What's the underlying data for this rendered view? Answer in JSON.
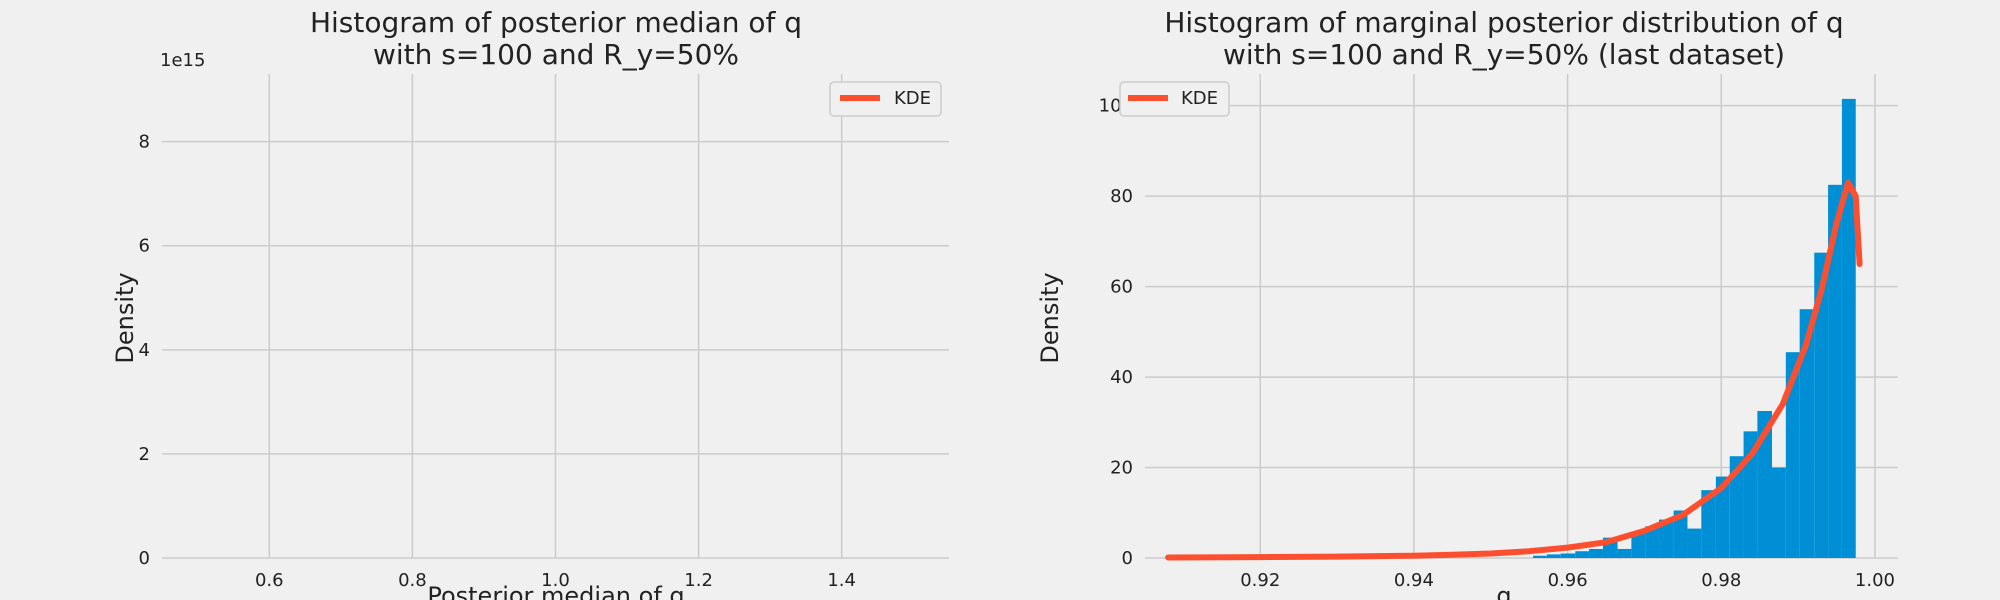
{
  "figure": {
    "background": "#f0f0f0",
    "grid_color": "#cbcbcb",
    "bar_color": "#008fd5",
    "kde_color": "#fc4f30"
  },
  "chart_data": [
    {
      "type": "bar",
      "title": [
        "Histogram of posterior median of q",
        "with s=100 and R_y=50%"
      ],
      "xlabel": "Posterior median of q",
      "ylabel": "Density",
      "y_offset_label": "1e15",
      "xlim": [
        0.45,
        1.55
      ],
      "ylim": [
        0,
        9.3
      ],
      "x_ticks": [
        0.6,
        0.8,
        1.0,
        1.2,
        1.4
      ],
      "x_tick_labels": [
        "0.6",
        "0.8",
        "1.0",
        "1.2",
        "1.4"
      ],
      "y_ticks": [
        0,
        2,
        4,
        6,
        8
      ],
      "y_tick_labels": [
        "0",
        "2",
        "4",
        "6",
        "8"
      ],
      "grid": true,
      "legend": {
        "position": "top-right",
        "entries": [
          "KDE"
        ]
      },
      "bins": [],
      "kde": {
        "x": [],
        "y": []
      }
    },
    {
      "type": "bar",
      "title": [
        "Histogram of marginal posterior distribution of q",
        "with s=100 and R_y=50% (last dataset)"
      ],
      "xlabel": "q",
      "ylabel": "Density",
      "xlim": [
        0.905,
        1.003
      ],
      "ylim": [
        0,
        107
      ],
      "x_ticks": [
        0.92,
        0.94,
        0.96,
        0.98,
        1.0
      ],
      "x_tick_labels": [
        "0.92",
        "0.94",
        "0.96",
        "0.98",
        "1.00"
      ],
      "y_ticks": [
        0,
        20,
        40,
        60,
        80,
        100
      ],
      "y_tick_labels": [
        "0",
        "20",
        "40",
        "60",
        "80",
        "100"
      ],
      "grid": true,
      "legend": {
        "position": "top-left",
        "entries": [
          "KDE"
        ]
      },
      "bins": [
        {
          "x0": 0.9555,
          "x1": 0.9573,
          "y": 0.5
        },
        {
          "x0": 0.9573,
          "x1": 0.9591,
          "y": 0.8
        },
        {
          "x0": 0.9591,
          "x1": 0.961,
          "y": 1.0
        },
        {
          "x0": 0.961,
          "x1": 0.9628,
          "y": 1.5
        },
        {
          "x0": 0.9628,
          "x1": 0.9646,
          "y": 2.0
        },
        {
          "x0": 0.9646,
          "x1": 0.9665,
          "y": 4.5
        },
        {
          "x0": 0.9665,
          "x1": 0.9683,
          "y": 2.0
        },
        {
          "x0": 0.9683,
          "x1": 0.9701,
          "y": 5.5
        },
        {
          "x0": 0.9701,
          "x1": 0.9719,
          "y": 7.0
        },
        {
          "x0": 0.9719,
          "x1": 0.9738,
          "y": 8.5
        },
        {
          "x0": 0.9738,
          "x1": 0.9756,
          "y": 10.5
        },
        {
          "x0": 0.9756,
          "x1": 0.9774,
          "y": 6.5
        },
        {
          "x0": 0.9774,
          "x1": 0.9793,
          "y": 15.0
        },
        {
          "x0": 0.9793,
          "x1": 0.9811,
          "y": 18.0
        },
        {
          "x0": 0.9811,
          "x1": 0.9829,
          "y": 22.5
        },
        {
          "x0": 0.9829,
          "x1": 0.9847,
          "y": 28.0
        },
        {
          "x0": 0.9847,
          "x1": 0.9866,
          "y": 32.5
        },
        {
          "x0": 0.9866,
          "x1": 0.9884,
          "y": 20.0
        },
        {
          "x0": 0.9884,
          "x1": 0.9902,
          "y": 45.5
        },
        {
          "x0": 0.9902,
          "x1": 0.9921,
          "y": 55.0
        },
        {
          "x0": 0.9921,
          "x1": 0.9939,
          "y": 67.5
        },
        {
          "x0": 0.9939,
          "x1": 0.9957,
          "y": 82.5
        },
        {
          "x0": 0.9957,
          "x1": 0.9975,
          "y": 101.5
        }
      ],
      "kde": {
        "x": [
          0.908,
          0.92,
          0.93,
          0.94,
          0.945,
          0.95,
          0.955,
          0.96,
          0.965,
          0.97,
          0.975,
          0.98,
          0.984,
          0.988,
          0.991,
          0.993,
          0.995,
          0.9965,
          0.9975,
          0.998
        ],
        "y": [
          0.1,
          0.2,
          0.3,
          0.5,
          0.7,
          1.0,
          1.5,
          2.3,
          3.5,
          6.0,
          9.5,
          15.5,
          23.0,
          34.0,
          47.0,
          59.0,
          74.0,
          83.0,
          80.0,
          65.0
        ]
      }
    }
  ]
}
